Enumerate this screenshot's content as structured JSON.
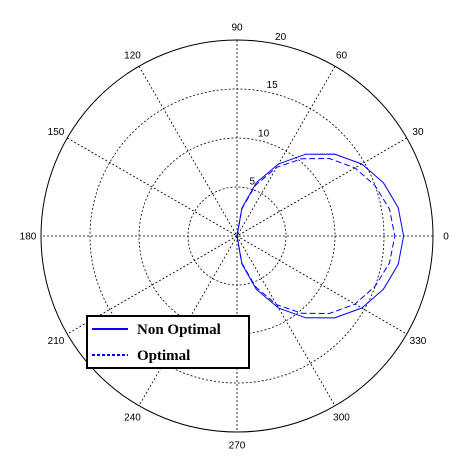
{
  "chart_data": {
    "type": "line",
    "subtype": "polar",
    "angle_ticks": [
      "0",
      "30",
      "60",
      "90",
      "120",
      "150",
      "180",
      "210",
      "240",
      "270",
      "300",
      "330"
    ],
    "radial_ticks": [
      "5",
      "10",
      "15",
      "20"
    ],
    "radial_ticks_angle": 80,
    "rlim": [
      0,
      20
    ],
    "grid": true,
    "legend_position": "lower-left",
    "series": [
      {
        "name": "Non Optimal",
        "style": "solid",
        "color": "#0000ff",
        "theta": [
          -90,
          -80,
          -70,
          -60,
          -50,
          -40,
          -30,
          -20,
          -10,
          0,
          10,
          20,
          30,
          40,
          50,
          60,
          70,
          80,
          90
        ],
        "r": [
          0,
          2.9,
          5.8,
          8.5,
          10.9,
          13.0,
          14.7,
          15.9,
          16.7,
          17.0,
          16.7,
          15.9,
          14.7,
          13.0,
          10.9,
          8.5,
          5.8,
          2.9,
          0
        ]
      },
      {
        "name": "Optimal",
        "style": "dashed",
        "color": "#0000ff",
        "theta": [
          -90,
          -80,
          -70,
          -60,
          -50,
          -40,
          -30,
          -20,
          -10,
          0,
          10,
          20,
          30,
          40,
          50,
          60,
          70,
          80,
          90
        ],
        "r": [
          0,
          2.8,
          5.5,
          8.1,
          10.3,
          12.3,
          13.9,
          15.0,
          15.8,
          16.1,
          15.8,
          15.0,
          13.9,
          12.3,
          10.3,
          8.1,
          5.5,
          2.8,
          0
        ]
      }
    ]
  }
}
